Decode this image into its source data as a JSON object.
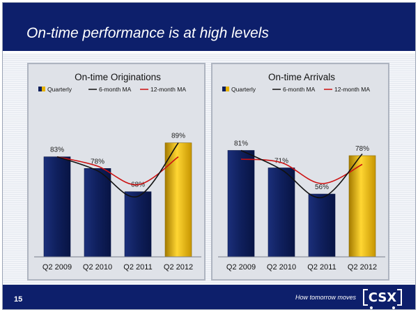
{
  "title": "On-time performance is at high levels",
  "page_number": "15",
  "tagline": "How tomorrow moves",
  "logo_text": "CSX",
  "colors": {
    "header_bg": "#0d1f6b",
    "bar_navy": "#0f1f5c",
    "bar_gold": "#e6b200",
    "ma6_line": "#111111",
    "ma12_line": "#cc1111"
  },
  "chart_data": [
    {
      "type": "bar",
      "title": "On-time Originations",
      "categories": [
        "Q2 2009",
        "Q2 2010",
        "Q2 2011",
        "Q2 2012"
      ],
      "values": [
        83,
        78,
        68,
        89
      ],
      "value_labels": [
        "83%",
        "78%",
        "68%",
        "89%"
      ],
      "highlight_index": 3,
      "legend": [
        "Quarterly",
        "6-month MA",
        "12-month MA"
      ],
      "legend_placement": "top",
      "ylim": [
        40,
        100
      ],
      "grid": false,
      "series": [
        {
          "name": "Quarterly",
          "values": [
            83,
            78,
            68,
            89
          ]
        },
        {
          "name": "6-month MA",
          "x": [
            0,
            1,
            2,
            3
          ],
          "values": [
            83,
            77,
            66,
            89
          ]
        },
        {
          "name": "12-month MA",
          "x": [
            0,
            1,
            2,
            3
          ],
          "values": [
            83,
            79,
            71,
            83
          ]
        }
      ]
    },
    {
      "type": "bar",
      "title": "On-time Arrivals",
      "categories": [
        "Q2 2009",
        "Q2 2010",
        "Q2 2011",
        "Q2 2012"
      ],
      "values": [
        81,
        71,
        56,
        78
      ],
      "value_labels": [
        "81%",
        "71%",
        "56%",
        "78%"
      ],
      "highlight_index": 3,
      "legend": [
        "Quarterly",
        "6-month MA",
        "12-month MA"
      ],
      "legend_placement": "top",
      "ylim": [
        20,
        100
      ],
      "grid": false,
      "series": [
        {
          "name": "Quarterly",
          "values": [
            81,
            71,
            56,
            78
          ]
        },
        {
          "name": "6-month MA",
          "x": [
            0,
            1,
            2,
            3
          ],
          "values": [
            81,
            70,
            54,
            79
          ]
        },
        {
          "name": "12-month MA",
          "x": [
            0,
            1,
            2,
            3
          ],
          "values": [
            76,
            74,
            62,
            73
          ]
        }
      ]
    }
  ]
}
